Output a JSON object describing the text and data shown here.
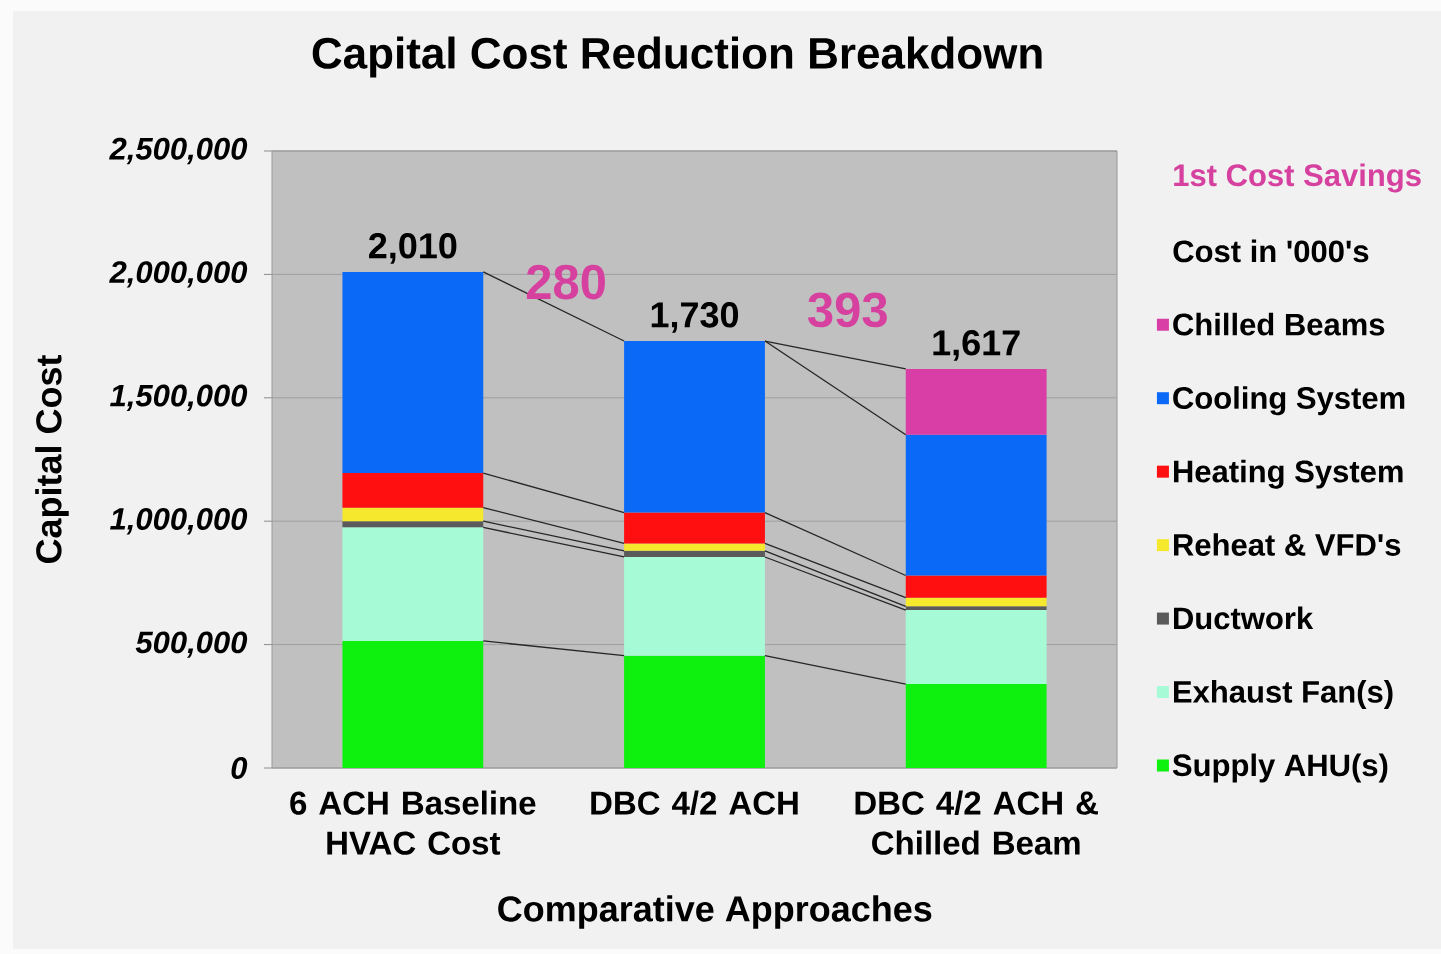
{
  "chart_data": {
    "type": "bar",
    "stacked": true,
    "title": "Capital Cost Reduction Breakdown",
    "xlabel": "Comparative Approaches",
    "ylabel": "Capital Cost",
    "legend_title": "Cost in '000's",
    "categories": [
      "6 ACH Baseline HVAC Cost",
      "DBC 4/2 ACH",
      "DBC 4/2 ACH & Chilled Beam"
    ],
    "series": [
      {
        "name": "Supply AHU(s)",
        "color": "#0ef00e",
        "values": [
          515000,
          455000,
          340000
        ]
      },
      {
        "name": "Exhaust Fan(s)",
        "color": "#a6fbd6",
        "values": [
          460000,
          400000,
          300000
        ]
      },
      {
        "name": "Ductwork",
        "color": "#5a5a5a",
        "values": [
          25000,
          25000,
          15000
        ]
      },
      {
        "name": "Reheat & VFD's",
        "color": "#f6e82c",
        "values": [
          55000,
          30000,
          35000
        ]
      },
      {
        "name": "Heating System",
        "color": "#ff0f0f",
        "values": [
          140000,
          125000,
          90000
        ]
      },
      {
        "name": "Cooling System",
        "color": "#0a6af7",
        "values": [
          815000,
          695000,
          570000
        ]
      },
      {
        "name": "Chilled Beams",
        "color": "#d93ea6",
        "values": [
          null,
          null,
          267000
        ]
      }
    ],
    "ylim": [
      0,
      2500000
    ],
    "yticks": [
      0,
      {
        "value": 500000,
        "label": "500,000"
      },
      {
        "value": 1000000,
        "label": "1,000,000"
      },
      {
        "value": 1500000,
        "label": "1,500,000"
      },
      {
        "value": 2000000,
        "label": "2,000,000"
      },
      {
        "value": 2500000,
        "label": "2,500,000"
      }
    ],
    "grid": "y",
    "legend": "right",
    "annotations": [
      "1st Cost Savings",
      {
        "text": "2,010",
        "x": "6 ACH Baseline HVAC Cost",
        "y": 2010000
      },
      {
        "text": "1,730",
        "x": "DBC 4/2 ACH",
        "y": 1730000
      },
      {
        "text": "1,617",
        "x": "DBC 4/2 ACH & Chilled Beam",
        "y": 1617000
      },
      {
        "text": "280",
        "x": "DBC 4/2 ACH",
        "y": 1730000
      },
      {
        "text": "393",
        "x": "DBC 4/2 ACH & Chilled Beam",
        "y": 1617000
      }
    ]
  }
}
